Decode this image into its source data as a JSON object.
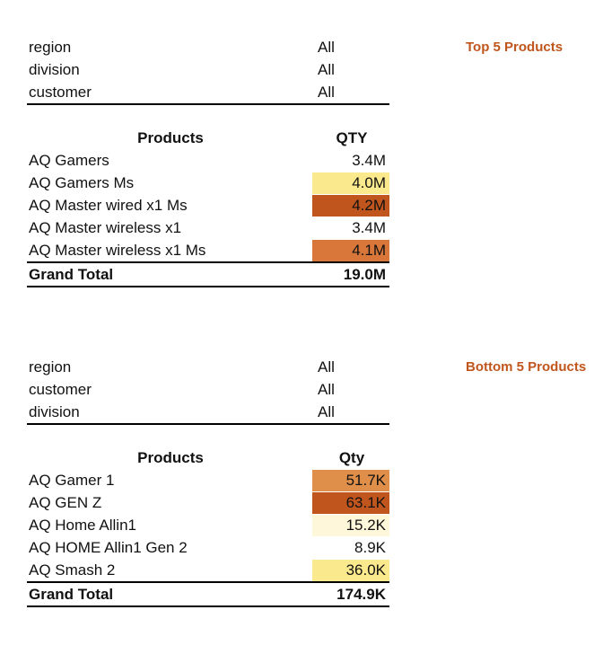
{
  "top": {
    "side_title": "Top 5 Products",
    "filters": [
      {
        "name": "region",
        "value": "All"
      },
      {
        "name": "division",
        "value": "All"
      },
      {
        "name": "customer",
        "value": "All"
      }
    ],
    "header": {
      "products": "Products",
      "qty": "QTY"
    },
    "rows": [
      {
        "product": "AQ Gamers",
        "qty": "3.4M",
        "color": "#ffffff"
      },
      {
        "product": "AQ Gamers Ms",
        "qty": "4.0M",
        "color": "#fbe98d"
      },
      {
        "product": "AQ Master wired x1 Ms",
        "qty": "4.2M",
        "color": "#c0561d"
      },
      {
        "product": "AQ Master wireless x1",
        "qty": "3.4M",
        "color": "#ffffff"
      },
      {
        "product": "AQ Master wireless x1 Ms",
        "qty": "4.1M",
        "color": "#d9773a"
      }
    ],
    "total": {
      "label": "Grand Total",
      "qty": "19.0M"
    }
  },
  "bottom": {
    "side_title": "Bottom 5 Products",
    "filters": [
      {
        "name": "region",
        "value": "All"
      },
      {
        "name": "customer",
        "value": "All"
      },
      {
        "name": "division",
        "value": "All"
      }
    ],
    "header": {
      "products": "Products",
      "qty": "Qty"
    },
    "rows": [
      {
        "product": "AQ Gamer 1",
        "qty": "51.7K",
        "color": "#e08f4a"
      },
      {
        "product": "AQ GEN Z",
        "qty": "63.1K",
        "color": "#c0561d"
      },
      {
        "product": "AQ Home Allin1",
        "qty": "15.2K",
        "color": "#fff7d9"
      },
      {
        "product": "AQ HOME Allin1 Gen 2",
        "qty": "8.9K",
        "color": "#ffffff"
      },
      {
        "product": "AQ Smash 2",
        "qty": "36.0K",
        "color": "#fbe98d"
      }
    ],
    "total": {
      "label": "Grand Total",
      "qty": "174.9K"
    }
  }
}
